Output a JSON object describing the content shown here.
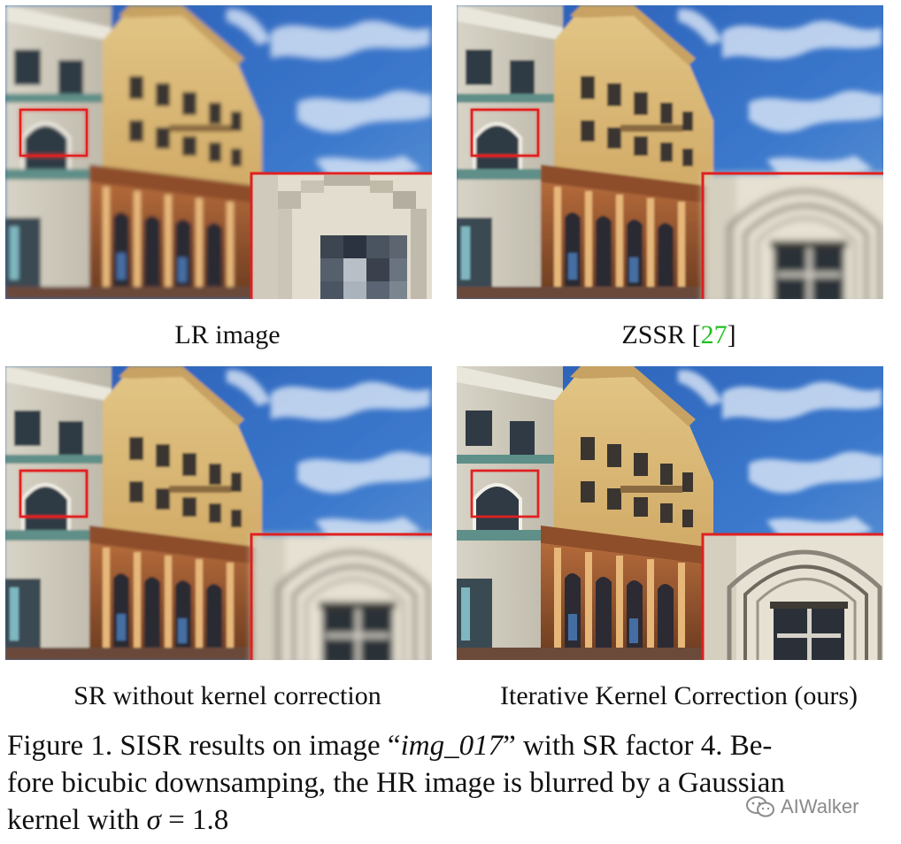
{
  "panels": [
    {
      "caption_text": "LR image",
      "ref": "",
      "closing": "",
      "style": "pixelated"
    },
    {
      "caption_text": "ZSSR [",
      "ref": "27",
      "closing": "]",
      "style": "blurry"
    },
    {
      "caption_text": "SR without kernel correction",
      "ref": "",
      "closing": "",
      "style": "blurry"
    },
    {
      "caption_text": "Iterative Kernel Correction (ours)",
      "ref": "",
      "closing": "",
      "style": "sharp"
    }
  ],
  "figure_caption": {
    "label": "Figure 1.",
    "text_a": " SISR results on image “",
    "image_name": "img_017",
    "text_b": "” with SR factor 4.  Be-",
    "line2": "fore bicubic downsamping, the HR image is blurred by a Gaussian",
    "line3_prefix": "kernel with ",
    "sigma_symbol": "σ",
    "sigma_value": " = 1.8"
  },
  "watermark": {
    "text": "AIWalker",
    "icon": "wechat-icon"
  },
  "colors": {
    "highlight_box": "#e02020",
    "sky": "#2f68c0",
    "facade": "#d8b46a",
    "reference_link": "#22c022"
  }
}
